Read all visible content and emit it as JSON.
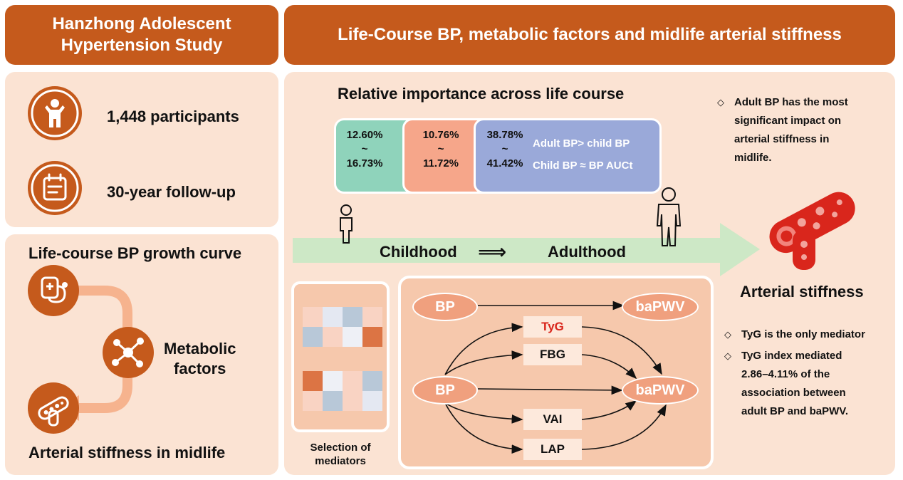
{
  "left": {
    "header": {
      "line1": "Hanzhong Adolescent",
      "line2": "Hypertension Study"
    },
    "stats": [
      {
        "icon": "person-icon",
        "text": "1,448 participants"
      },
      {
        "icon": "calendar-icon",
        "text": "30-year follow-up"
      }
    ],
    "growth": {
      "title": "Life-course BP growth curve",
      "metabolic_line1": "Metabolic",
      "metabolic_line2": "factors",
      "footer": "Arterial stiffness in midlife"
    }
  },
  "right": {
    "header": "Life-Course BP, metabolic factors and midlife arterial stiffness",
    "importance": {
      "title": "Relative importance across life course",
      "segments": [
        {
          "low": "12.60%",
          "tilde": "~",
          "high": "16.73%",
          "color": "#8fd3bb"
        },
        {
          "low": "10.76%",
          "tilde": "~",
          "high": "11.72%",
          "color": "#f6a68a"
        },
        {
          "low": "38.78%",
          "tilde": "~",
          "high": "41.42%",
          "color": "#9aa9d9"
        }
      ],
      "note1": "Adult BP> child BP",
      "note2": "Child BP ≈ BP AUCt"
    },
    "timeline": {
      "start": "Childhood",
      "arrow": "⟹",
      "end": "Adulthood"
    },
    "finding_top": [
      "Adult BP has the most",
      "significant impact on",
      "arterial stiffness in",
      "midlife."
    ],
    "stiffness_label": "Arterial stiffness",
    "findings_bottom": [
      {
        "lines": [
          "TyG is the only mediator"
        ]
      },
      {
        "lines": [
          "TyG index mediated",
          "2.86–4.11% of the",
          "association between",
          "adult BP and baPWV."
        ]
      }
    ],
    "mediators_label_1": "Selection of",
    "mediators_label_2": "mediators",
    "diagram": {
      "bp_top": "BP",
      "bapwv_top": "baPWV",
      "bp_main": "BP",
      "bapwv_main": "baPWV",
      "mediators": [
        "TyG",
        "FBG",
        "VAI",
        "LAP"
      ]
    },
    "colors": {
      "accent": "#c55a1c",
      "panel": "#fbe3d3",
      "tyg": "#d9261c"
    }
  }
}
